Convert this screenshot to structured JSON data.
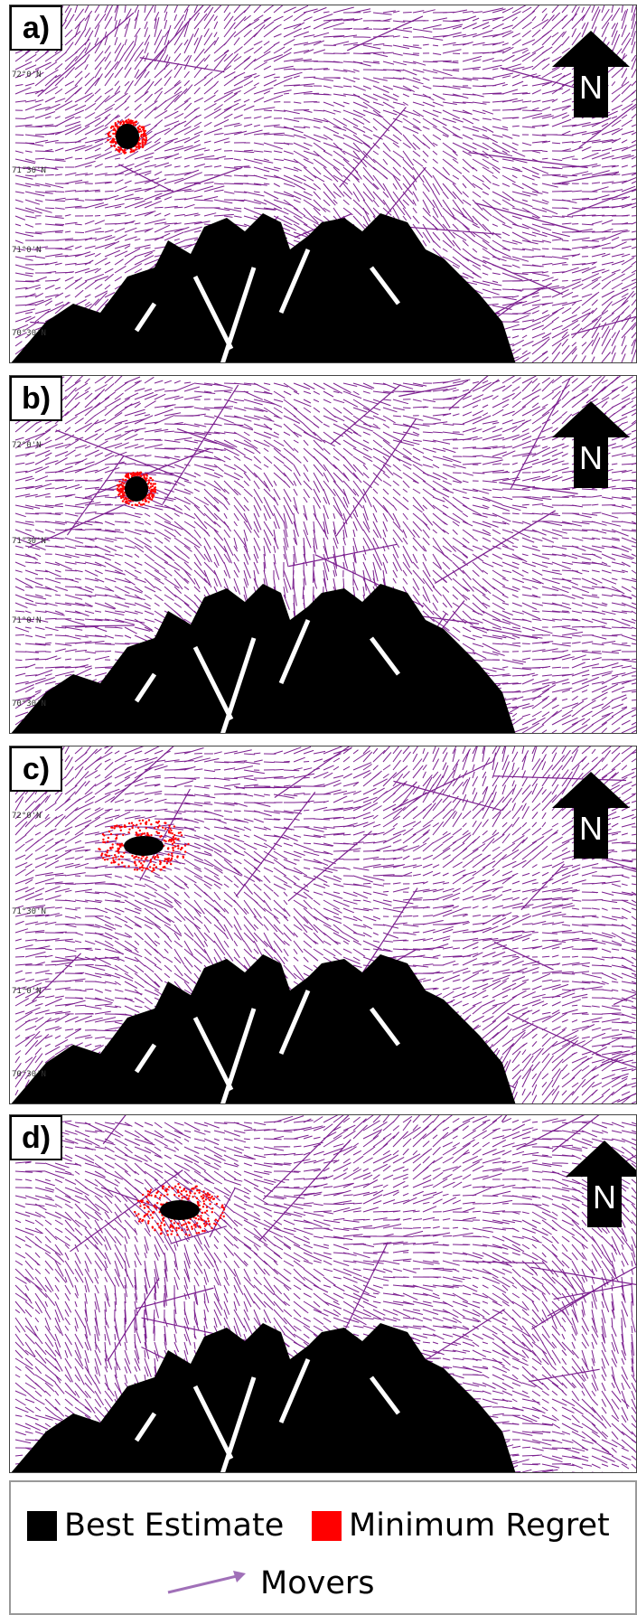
{
  "panels": [
    {
      "label": "a)",
      "north": "N",
      "lat_ticks": [
        "72°0'N",
        "71°30'N",
        "71°0'N",
        "70°30'N"
      ],
      "spread": "narrow"
    },
    {
      "label": "b)",
      "north": "N",
      "lat_ticks": [
        "72°0'N",
        "71°30'N",
        "71°0'N",
        "70°30'N"
      ],
      "spread": "narrow"
    },
    {
      "label": "c)",
      "north": "N",
      "lat_ticks": [
        "72°0'N",
        "71°30'N",
        "71°0'N",
        "70°30'N"
      ],
      "spread": "wide"
    },
    {
      "label": "d)",
      "north": "N",
      "lat_ticks": [],
      "spread": "wide"
    }
  ],
  "legend": {
    "best_estimate": "Best Estimate",
    "minimum_regret": "Minimum Regret",
    "movers": "Movers"
  },
  "colors": {
    "current_vectors": "#7b1f8f",
    "best_estimate": "#000000",
    "minimum_regret": "#ff0000",
    "movers_arrow": "#a070b8",
    "land": "#000000"
  }
}
